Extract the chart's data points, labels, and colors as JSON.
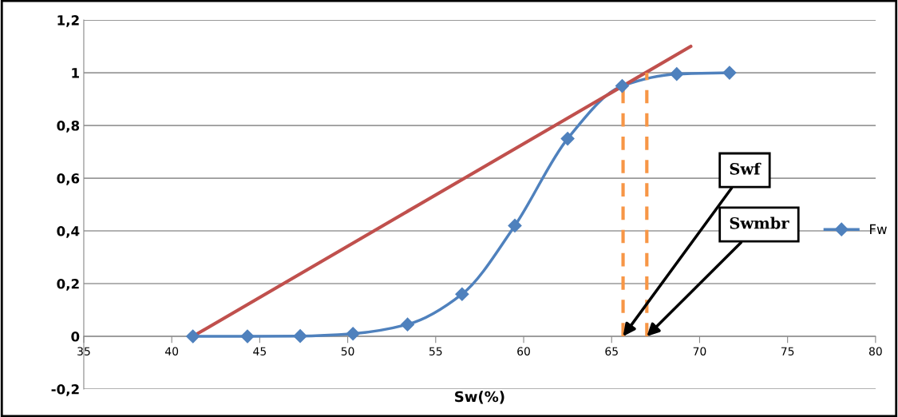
{
  "chart_data": {
    "type": "line",
    "xlabel": "Sw(%)",
    "x": [
      41.2,
      44.3,
      47.3,
      50.3,
      53.4,
      56.5,
      59.5,
      62.5,
      65.6,
      68.7,
      71.7
    ],
    "series": [
      {
        "name": "Fw",
        "color": "#4f81bd",
        "values": [
          0,
          0,
          0.001,
          0.01,
          0.045,
          0.16,
          0.42,
          0.75,
          0.95,
          0.995,
          1.0
        ],
        "marker": "diamond",
        "line_style": "solid"
      },
      {
        "type": "line",
        "color": "#c0504d",
        "x": [
          41.2,
          69.5
        ],
        "values": [
          0,
          1.1
        ],
        "marker": "none",
        "line_style": "solid"
      },
      {
        "type": "line",
        "color": "#f79646",
        "x": [
          65.65,
          65.65
        ],
        "values": [
          0,
          0.96
        ],
        "marker": "none",
        "line_style": "dashed"
      },
      {
        "type": "line",
        "color": "#f79646",
        "x": [
          67.0,
          67.0
        ],
        "values": [
          0,
          1.0
        ],
        "marker": "none",
        "line_style": "dashed"
      }
    ],
    "annotations": [
      {
        "text": "Swf",
        "x": 65.65,
        "y": 0
      },
      {
        "text": "Swmbr",
        "x": 67.0,
        "y": 0
      }
    ],
    "xlim": [
      35,
      80
    ],
    "xticks": [
      35,
      40,
      45,
      50,
      55,
      60,
      65,
      70,
      75,
      80
    ],
    "ylim": [
      -0.2,
      1.2
    ],
    "yticks": [
      {
        "value": -0.2,
        "label": "-0,2"
      },
      0,
      {
        "value": 0.2,
        "label": "0,2"
      },
      {
        "value": 0.4,
        "label": "0,4"
      },
      {
        "value": 0.6,
        "label": "0,6"
      },
      {
        "value": 0.8,
        "label": "0,8"
      },
      1,
      {
        "value": 1.2,
        "label": "1,2"
      }
    ],
    "grid": "y",
    "legend": "right"
  }
}
